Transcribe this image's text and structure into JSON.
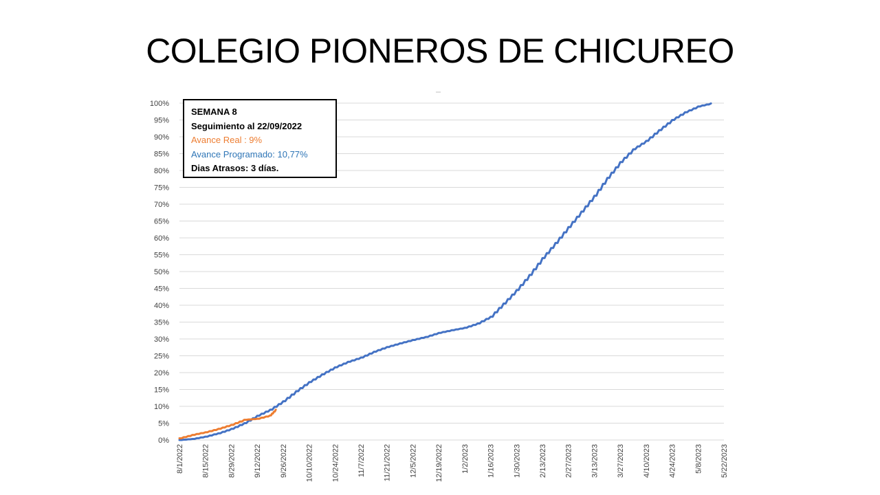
{
  "title": "COLEGIO PIONEROS DE CHICUREO",
  "info_box": {
    "week": "SEMANA 8",
    "tracking": "Seguimiento al  22/09/2022",
    "real": "Avance Real :  9%",
    "planned": "Avance Programado: 10,77%",
    "delay": "Dias Atrasos: 3 días."
  },
  "colors": {
    "planned": "#4472c4",
    "real": "#ed7d31",
    "grid": "#d9d9d9"
  },
  "chart_data": {
    "type": "line",
    "title": "",
    "xlabel": "",
    "ylabel": "",
    "ylim": [
      0,
      100
    ],
    "y_ticks": [
      "0%",
      "5%",
      "10%",
      "15%",
      "20%",
      "25%",
      "30%",
      "35%",
      "40%",
      "45%",
      "50%",
      "55%",
      "60%",
      "65%",
      "70%",
      "75%",
      "80%",
      "85%",
      "90%",
      "95%",
      "100%"
    ],
    "x_ticks": [
      "8/1/2022",
      "8/15/2022",
      "8/29/2022",
      "9/12/2022",
      "9/26/2022",
      "10/10/2022",
      "10/24/2022",
      "11/7/2022",
      "11/21/2022",
      "12/5/2022",
      "12/19/2022",
      "1/2/2023",
      "1/16/2023",
      "1/30/2023",
      "2/13/2023",
      "2/27/2023",
      "3/13/2023",
      "3/27/2023",
      "4/10/2023",
      "4/24/2023",
      "5/8/2023",
      "5/22/2023"
    ],
    "grid": true,
    "series": [
      {
        "key": "planned",
        "x": [
          "8/1/2022",
          "8/8/2022",
          "8/15/2022",
          "8/22/2022",
          "8/29/2022",
          "9/5/2022",
          "9/12/2022",
          "9/19/2022",
          "9/26/2022",
          "10/3/2022",
          "10/10/2022",
          "10/17/2022",
          "10/24/2022",
          "10/31/2022",
          "11/7/2022",
          "11/14/2022",
          "11/21/2022",
          "11/28/2022",
          "12/5/2022",
          "12/12/2022",
          "12/19/2022",
          "12/26/2022",
          "1/2/2023",
          "1/9/2023",
          "1/16/2023",
          "1/23/2023",
          "1/30/2023",
          "2/6/2023",
          "2/13/2023",
          "2/20/2023",
          "2/27/2023",
          "3/6/2023",
          "3/13/2023",
          "3/20/2023",
          "3/27/2023",
          "4/3/2023",
          "4/10/2023",
          "4/17/2023",
          "4/24/2023",
          "5/1/2023",
          "5/8/2023",
          "5/15/2023"
        ],
        "values": [
          0,
          0.3,
          1,
          2,
          3.3,
          5,
          7.2,
          9,
          11.5,
          14.5,
          17.2,
          19.5,
          21.6,
          23.2,
          24.5,
          26.2,
          27.6,
          28.7,
          29.7,
          30.6,
          31.8,
          32.6,
          33.3,
          34.6,
          36.6,
          40.5,
          44.5,
          49,
          54,
          58.5,
          63.2,
          67.8,
          72.5,
          77.8,
          82.5,
          86.3,
          88.8,
          92,
          95,
          97.3,
          99,
          99.9
        ]
      },
      {
        "key": "real",
        "x": [
          "8/1/2022",
          "8/8/2022",
          "8/15/2022",
          "8/22/2022",
          "8/29/2022",
          "9/5/2022",
          "9/12/2022",
          "9/19/2022",
          "9/22/2022"
        ],
        "values": [
          0.5,
          1.5,
          2.3,
          3.3,
          4.5,
          6,
          6.3,
          7.3,
          9
        ]
      }
    ]
  }
}
